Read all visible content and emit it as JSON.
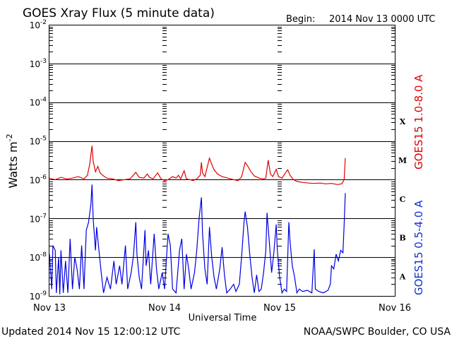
{
  "chart_data": {
    "type": "line",
    "title": "GOES Xray Flux (5 minute data)",
    "begin_label": "Begin:",
    "begin_value": "2014 Nov 13 0000 UTC",
    "xlabel": "Universal Time",
    "ylabel_base": "Watts m",
    "ylabel_exp": "-2",
    "x_ticks": [
      "Nov 13",
      "Nov 14",
      "Nov 15",
      "Nov 16"
    ],
    "x_unit": "days since Nov 13 0000 UTC",
    "xlim": [
      0,
      3
    ],
    "ylim": [
      1e-09,
      0.01
    ],
    "log_scale_y": true,
    "y_ticks": [
      {
        "base": "10",
        "exp": "-9"
      },
      {
        "base": "10",
        "exp": "-8"
      },
      {
        "base": "10",
        "exp": "-7"
      },
      {
        "base": "10",
        "exp": "-6"
      },
      {
        "base": "10",
        "exp": "-5"
      },
      {
        "base": "10",
        "exp": "-4"
      },
      {
        "base": "10",
        "exp": "-3"
      },
      {
        "base": "10",
        "exp": "-2"
      }
    ],
    "flare_classes": [
      "A",
      "B",
      "C",
      "M",
      "X"
    ],
    "grid": true,
    "footer_left": "Updated 2014 Nov 15 12:00:12 UTC",
    "footer_right": "NOAA/SWPC Boulder, CO USA",
    "series": [
      {
        "name": "GOES15 1.0-8.0 A",
        "color": "#e00000",
        "points": [
          [
            0.0,
            1.1e-06
          ],
          [
            0.05,
            1e-06
          ],
          [
            0.1,
            1.15e-06
          ],
          [
            0.15,
            1.05e-06
          ],
          [
            0.2,
            1.1e-06
          ],
          [
            0.25,
            1.2e-06
          ],
          [
            0.3,
            1.05e-06
          ],
          [
            0.33,
            1.3e-06
          ],
          [
            0.35,
            2.5e-06
          ],
          [
            0.37,
            7.5e-06
          ],
          [
            0.38,
            3e-06
          ],
          [
            0.4,
            1.6e-06
          ],
          [
            0.42,
            2.2e-06
          ],
          [
            0.44,
            1.5e-06
          ],
          [
            0.47,
            1.25e-06
          ],
          [
            0.5,
            1.1e-06
          ],
          [
            0.55,
            1.05e-06
          ],
          [
            0.6,
            9.5e-07
          ],
          [
            0.65,
            1e-06
          ],
          [
            0.7,
            1.05e-06
          ],
          [
            0.75,
            1.55e-06
          ],
          [
            0.78,
            1.15e-06
          ],
          [
            0.82,
            1.1e-06
          ],
          [
            0.85,
            1.4e-06
          ],
          [
            0.87,
            1.15e-06
          ],
          [
            0.9,
            1.05e-06
          ],
          [
            0.94,
            1.5e-06
          ],
          [
            0.97,
            1.05e-06
          ],
          [
            1.0,
            9.5e-07
          ],
          [
            1.03,
            1e-06
          ],
          [
            1.07,
            1.2e-06
          ],
          [
            1.1,
            1.1e-06
          ],
          [
            1.12,
            1.3e-06
          ],
          [
            1.14,
            1.05e-06
          ],
          [
            1.17,
            1.7e-06
          ],
          [
            1.19,
            1.05e-06
          ],
          [
            1.22,
            1e-06
          ],
          [
            1.25,
            9.5e-07
          ],
          [
            1.28,
            1.05e-06
          ],
          [
            1.31,
            1.3e-06
          ],
          [
            1.32,
            2.8e-06
          ],
          [
            1.33,
            1.5e-06
          ],
          [
            1.35,
            1.2e-06
          ],
          [
            1.39,
            3.6e-06
          ],
          [
            1.41,
            2.5e-06
          ],
          [
            1.43,
            1.8e-06
          ],
          [
            1.46,
            1.4e-06
          ],
          [
            1.5,
            1.2e-06
          ],
          [
            1.55,
            1.1e-06
          ],
          [
            1.6,
            1e-06
          ],
          [
            1.64,
            9.5e-07
          ],
          [
            1.67,
            1.2e-06
          ],
          [
            1.7,
            2.8e-06
          ],
          [
            1.72,
            2.3e-06
          ],
          [
            1.75,
            1.6e-06
          ],
          [
            1.78,
            1.25e-06
          ],
          [
            1.82,
            1.1e-06
          ],
          [
            1.86,
            1.05e-06
          ],
          [
            1.88,
            1.1e-06
          ],
          [
            1.9,
            3.2e-06
          ],
          [
            1.92,
            1.4e-06
          ],
          [
            1.94,
            1.2e-06
          ],
          [
            1.97,
            1.85e-06
          ],
          [
            1.99,
            1.2e-06
          ],
          [
            2.02,
            1.1e-06
          ],
          [
            2.05,
            1.5e-06
          ],
          [
            2.07,
            1.8e-06
          ],
          [
            2.09,
            1.3e-06
          ],
          [
            2.12,
            1e-06
          ],
          [
            2.15,
            9e-07
          ],
          [
            2.2,
            8.5e-07
          ],
          [
            2.25,
            8.2e-07
          ],
          [
            2.3,
            8e-07
          ],
          [
            2.35,
            8.2e-07
          ],
          [
            2.4,
            7.8e-07
          ],
          [
            2.45,
            8e-07
          ],
          [
            2.5,
            7.5e-07
          ],
          [
            2.54,
            7.8e-07
          ],
          [
            2.56,
            1e-06
          ],
          [
            2.57,
            3.6e-06
          ]
        ]
      },
      {
        "name": "GOES15 0.5-4.0 A",
        "color": "#0000e0",
        "points": [
          [
            0.0,
            1.2e-08
          ],
          [
            0.02,
            1.5e-09
          ],
          [
            0.03,
            2e-08
          ],
          [
            0.05,
            1.5e-08
          ],
          [
            0.06,
            1.2e-09
          ],
          [
            0.08,
            1e-08
          ],
          [
            0.09,
            1.1e-09
          ],
          [
            0.1,
            1.5e-08
          ],
          [
            0.12,
            1.2e-09
          ],
          [
            0.14,
            8e-09
          ],
          [
            0.16,
            1.2e-09
          ],
          [
            0.18,
            3e-08
          ],
          [
            0.2,
            1.5e-09
          ],
          [
            0.22,
            1e-08
          ],
          [
            0.24,
            5e-09
          ],
          [
            0.26,
            1.5e-09
          ],
          [
            0.28,
            2e-08
          ],
          [
            0.3,
            1.5e-09
          ],
          [
            0.32,
            5e-08
          ],
          [
            0.34,
            8e-08
          ],
          [
            0.36,
            2.3e-07
          ],
          [
            0.37,
            7.5e-07
          ],
          [
            0.38,
            1e-07
          ],
          [
            0.4,
            1.5e-08
          ],
          [
            0.41,
            6e-08
          ],
          [
            0.43,
            1.5e-08
          ],
          [
            0.45,
            4e-09
          ],
          [
            0.47,
            1.2e-09
          ],
          [
            0.5,
            3e-09
          ],
          [
            0.53,
            1.5e-09
          ],
          [
            0.56,
            8e-09
          ],
          [
            0.58,
            2e-09
          ],
          [
            0.61,
            6e-09
          ],
          [
            0.63,
            2e-09
          ],
          [
            0.66,
            2e-08
          ],
          [
            0.68,
            1.5e-09
          ],
          [
            0.71,
            4e-09
          ],
          [
            0.73,
            1.1e-08
          ],
          [
            0.75,
            8e-08
          ],
          [
            0.76,
            1.2e-08
          ],
          [
            0.78,
            3e-09
          ],
          [
            0.8,
            1.5e-09
          ],
          [
            0.83,
            5e-08
          ],
          [
            0.84,
            6e-09
          ],
          [
            0.86,
            1.5e-08
          ],
          [
            0.88,
            2e-09
          ],
          [
            0.91,
            4e-08
          ],
          [
            0.93,
            5e-09
          ],
          [
            0.95,
            1.5e-09
          ],
          [
            0.98,
            4e-09
          ],
          [
            1.0,
            1.5e-09
          ],
          [
            1.03,
            4e-08
          ],
          [
            1.05,
            2e-08
          ],
          [
            1.07,
            1.5e-09
          ],
          [
            1.1,
            1.2e-09
          ],
          [
            1.13,
            1.5e-08
          ],
          [
            1.15,
            3e-08
          ],
          [
            1.17,
            1.5e-09
          ],
          [
            1.19,
            1.2e-08
          ],
          [
            1.21,
            5e-09
          ],
          [
            1.23,
            1.5e-09
          ],
          [
            1.26,
            4e-09
          ],
          [
            1.28,
            1.5e-08
          ],
          [
            1.3,
            1e-07
          ],
          [
            1.32,
            3.5e-07
          ],
          [
            1.33,
            4e-08
          ],
          [
            1.35,
            5e-09
          ],
          [
            1.37,
            2e-09
          ],
          [
            1.39,
            6e-08
          ],
          [
            1.41,
            1e-08
          ],
          [
            1.43,
            3e-09
          ],
          [
            1.45,
            1.5e-09
          ],
          [
            1.48,
            5e-09
          ],
          [
            1.5,
            1.8e-08
          ],
          [
            1.52,
            3.5e-09
          ],
          [
            1.54,
            1.2e-09
          ],
          [
            1.57,
            1.5e-09
          ],
          [
            1.6,
            2e-09
          ],
          [
            1.62,
            1.3e-09
          ],
          [
            1.65,
            2e-09
          ],
          [
            1.67,
            1.1e-08
          ],
          [
            1.69,
            8e-08
          ],
          [
            1.7,
            1.5e-07
          ],
          [
            1.72,
            6e-08
          ],
          [
            1.74,
            1.2e-08
          ],
          [
            1.76,
            3e-09
          ],
          [
            1.78,
            1.2e-09
          ],
          [
            1.8,
            3.5e-09
          ],
          [
            1.82,
            1.3e-09
          ],
          [
            1.84,
            1.5e-09
          ],
          [
            1.86,
            4e-09
          ],
          [
            1.88,
            1.5e-08
          ],
          [
            1.89,
            1.4e-07
          ],
          [
            1.91,
            2.5e-08
          ],
          [
            1.93,
            4e-09
          ],
          [
            1.95,
            1.4e-08
          ],
          [
            1.97,
            7e-08
          ],
          [
            1.98,
            1.5e-08
          ],
          [
            2.0,
            3e-09
          ],
          [
            2.02,
            1.2e-09
          ],
          [
            2.04,
            1.5e-09
          ],
          [
            2.06,
            1.3e-09
          ],
          [
            2.08,
            8e-08
          ],
          [
            2.09,
            2.5e-08
          ],
          [
            2.11,
            6e-09
          ],
          [
            2.13,
            3e-09
          ],
          [
            2.15,
            1.2e-09
          ],
          [
            2.17,
            1.5e-09
          ],
          [
            2.2,
            1.3e-09
          ],
          [
            2.24,
            1.4e-09
          ],
          [
            2.28,
            1.2e-09
          ],
          [
            2.3,
            1.6e-08
          ],
          [
            2.31,
            1.5e-09
          ],
          [
            2.34,
            1.3e-09
          ],
          [
            2.38,
            1.2e-09
          ],
          [
            2.42,
            1.4e-09
          ],
          [
            2.44,
            2e-09
          ],
          [
            2.45,
            6e-09
          ],
          [
            2.47,
            5e-09
          ],
          [
            2.49,
            1.2e-08
          ],
          [
            2.51,
            8e-09
          ],
          [
            2.53,
            1.5e-08
          ],
          [
            2.55,
            1.3e-08
          ],
          [
            2.56,
            7e-08
          ],
          [
            2.57,
            4.5e-07
          ]
        ]
      }
    ]
  }
}
